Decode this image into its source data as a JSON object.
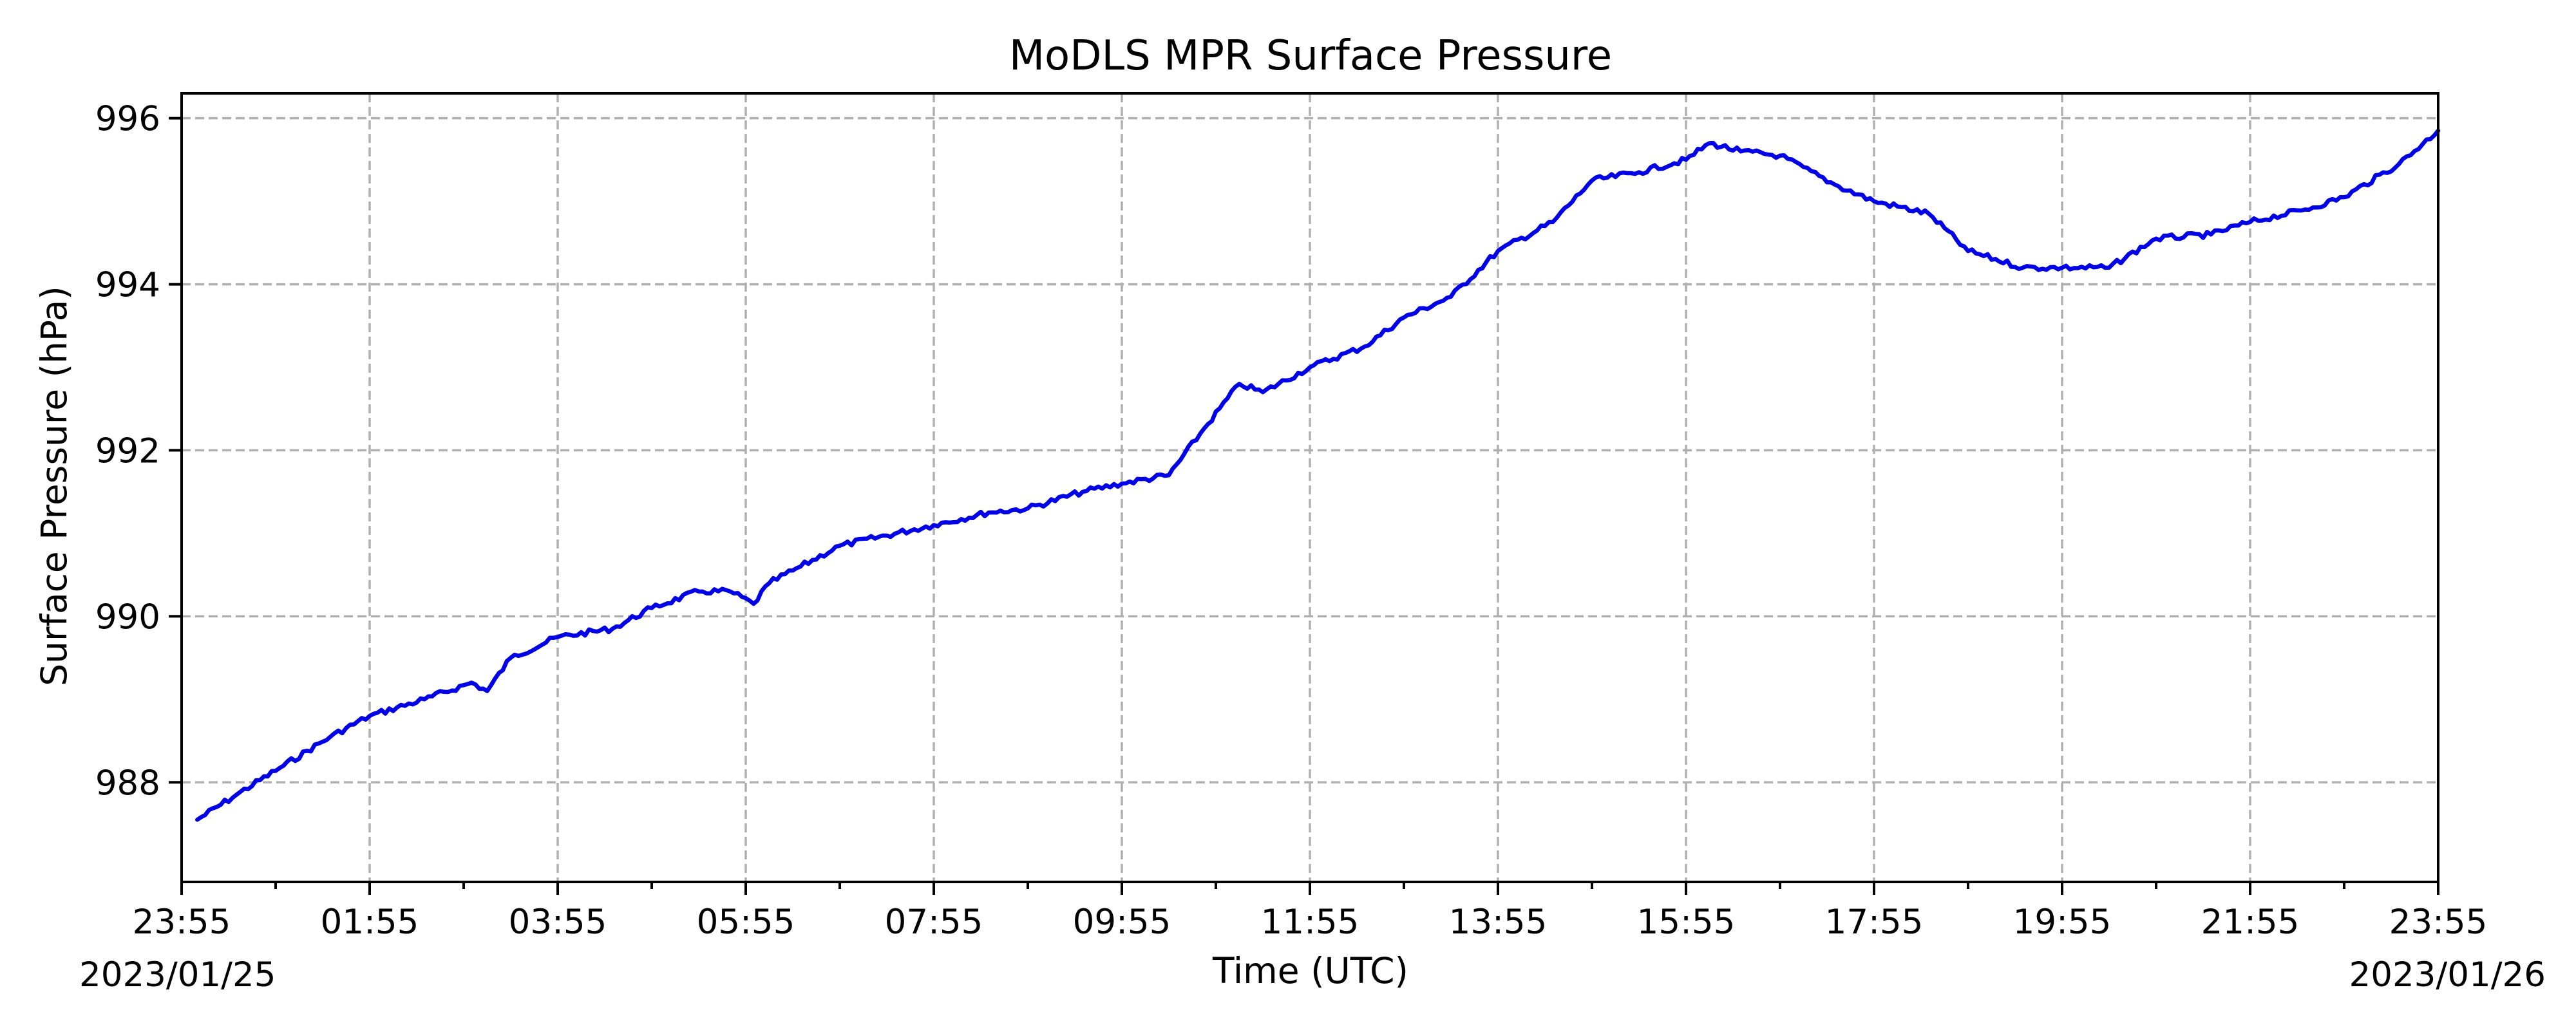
{
  "chart_data": {
    "type": "line",
    "title": "MoDLS MPR Surface Pressure",
    "xlabel": "Time (UTC)",
    "ylabel": "Surface Pressure (hPa)",
    "x_start_label": "2023/01/25",
    "x_end_label": "2023/01/26",
    "x_tick_labels": [
      "23:55",
      "01:55",
      "03:55",
      "05:55",
      "07:55",
      "09:55",
      "11:55",
      "13:55",
      "15:55",
      "17:55",
      "19:55",
      "21:55",
      "23:55"
    ],
    "x_range": [
      "2023-01-25 23:55",
      "2023-01-26 23:55"
    ],
    "y_ticks": [
      988,
      990,
      992,
      994,
      996
    ],
    "ylim": [
      986.8,
      996.3
    ],
    "grid": true,
    "legend": "none",
    "colors": {
      "series": "#0000e6",
      "grid": "#b0b0b0"
    },
    "series": [
      {
        "x": [
          "2023-01-26 00:05",
          "2023-01-26 00:30",
          "2023-01-26 01:00",
          "2023-01-26 01:30",
          "2023-01-26 01:55",
          "2023-01-26 02:30",
          "2023-01-26 03:00",
          "2023-01-26 03:10",
          "2023-01-26 03:25",
          "2023-01-26 03:55",
          "2023-01-26 04:30",
          "2023-01-26 04:55",
          "2023-01-26 05:25",
          "2023-01-26 05:45",
          "2023-01-26 06:00",
          "2023-01-26 06:10",
          "2023-01-26 06:30",
          "2023-01-26 06:55",
          "2023-01-26 07:55",
          "2023-01-26 08:30",
          "2023-01-26 08:55",
          "2023-01-26 09:30",
          "2023-01-26 09:55",
          "2023-01-26 10:25",
          "2023-01-26 10:45",
          "2023-01-26 11:10",
          "2023-01-26 11:25",
          "2023-01-26 11:55",
          "2023-01-26 12:30",
          "2023-01-26 12:55",
          "2023-01-26 13:25",
          "2023-01-26 13:55",
          "2023-01-26 14:30",
          "2023-01-26 14:55",
          "2023-01-26 15:25",
          "2023-01-26 15:55",
          "2023-01-26 16:10",
          "2023-01-26 16:30",
          "2023-01-26 16:55",
          "2023-01-26 17:30",
          "2023-01-26 17:55",
          "2023-01-26 18:30",
          "2023-01-26 18:55",
          "2023-01-26 19:30",
          "2023-01-26 19:55",
          "2023-01-26 20:25",
          "2023-01-26 20:55",
          "2023-01-26 21:30",
          "2023-01-26 21:55",
          "2023-01-26 22:30",
          "2023-01-26 22:55",
          "2023-01-26 23:30",
          "2023-01-26 23:55"
        ],
        "y": [
          987.55,
          987.85,
          988.2,
          988.55,
          988.8,
          989.0,
          989.2,
          989.1,
          989.5,
          989.75,
          989.85,
          990.1,
          990.3,
          990.3,
          990.15,
          990.4,
          990.6,
          990.85,
          991.1,
          991.25,
          991.3,
          991.5,
          991.6,
          991.7,
          992.2,
          992.8,
          992.7,
          993.0,
          993.25,
          993.6,
          993.85,
          994.4,
          994.75,
          995.25,
          995.35,
          995.5,
          995.7,
          995.6,
          995.55,
          995.2,
          995.0,
          994.85,
          994.4,
          994.2,
          994.2,
          994.2,
          994.55,
          994.6,
          994.75,
          994.9,
          995.05,
          995.45,
          995.85
        ]
      }
    ]
  }
}
